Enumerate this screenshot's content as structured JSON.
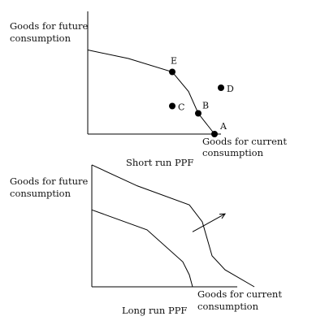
{
  "chart_data": [
    {
      "type": "line",
      "title": "Short run PPF",
      "ylabel": [
        "Goods for future",
        "consumption"
      ],
      "xlabel": [
        "Goods for current",
        "consumption"
      ],
      "xlim": [
        0,
        100
      ],
      "ylim": [
        0,
        100
      ],
      "grid": false,
      "series": [
        {
          "x": [
            0,
            25,
            52,
            62,
            68,
            78
          ],
          "y": [
            69,
            62,
            51,
            35,
            17,
            0
          ]
        }
      ],
      "points": [
        {
          "label": "E",
          "x": 52,
          "y": 51
        },
        {
          "label": "D",
          "x": 82,
          "y": 38
        },
        {
          "label": "C",
          "x": 52,
          "y": 23
        },
        {
          "label": "B",
          "x": 68,
          "y": 17
        },
        {
          "label": "A",
          "x": 78,
          "y": 0
        }
      ]
    },
    {
      "type": "line",
      "title": "Long run PPF",
      "ylabel": [
        "Goods for future",
        "consumption"
      ],
      "xlabel": [
        "Goods for current",
        "consumption"
      ],
      "xlim": [
        0,
        100
      ],
      "ylim": [
        0,
        100
      ],
      "grid": false,
      "series": [
        {
          "x": [
            0,
            28,
            60,
            68,
            74,
            82,
            100
          ],
          "y": [
            122,
            101,
            82,
            65,
            31,
            17,
            0
          ]
        },
        {
          "x": [
            0,
            34,
            56,
            60,
            62
          ],
          "y": [
            77,
            57,
            25,
            12,
            0
          ]
        }
      ],
      "arrow": {
        "from": [
          62,
          55
        ],
        "to": [
          82,
          73
        ]
      }
    }
  ]
}
